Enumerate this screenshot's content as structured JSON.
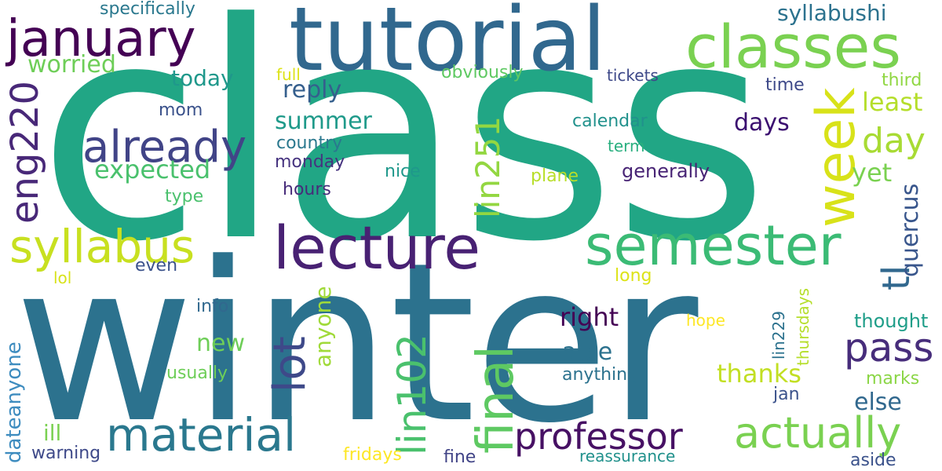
{
  "colors": {
    "background": "#ffffff",
    "palette": [
      "#440154",
      "#482677",
      "#3b528b",
      "#2c728e",
      "#21918c",
      "#28ae80",
      "#5ec962",
      "#addc30",
      "#fde725"
    ]
  },
  "words": [
    {
      "text": "class",
      "color": "#21a685"
    },
    {
      "text": "winter",
      "color": "#2c728e"
    },
    {
      "text": "tutorial",
      "color": "#31688e"
    },
    {
      "text": "classes",
      "color": "#7ad151"
    },
    {
      "text": "january",
      "color": "#440154"
    },
    {
      "text": "lecture",
      "color": "#482173"
    },
    {
      "text": "semester",
      "color": "#3bbb75"
    },
    {
      "text": "syllabus",
      "color": "#c8e020"
    },
    {
      "text": "week",
      "color": "#d8e219"
    },
    {
      "text": "eng220",
      "color": "#482878"
    },
    {
      "text": "already",
      "color": "#414487"
    },
    {
      "text": "material",
      "color": "#2a788e"
    },
    {
      "text": "actually",
      "color": "#7ad151"
    },
    {
      "text": "professor",
      "color": "#471164"
    },
    {
      "text": "final",
      "color": "#5ec962"
    },
    {
      "text": "pass",
      "color": "#472d7b"
    },
    {
      "text": "lot",
      "color": "#3e4989"
    },
    {
      "text": "lin251",
      "color": "#93d741"
    },
    {
      "text": "lin102",
      "color": "#4ac16d"
    },
    {
      "text": "day",
      "color": "#a8db34"
    },
    {
      "text": "tl",
      "color": "#31688e"
    },
    {
      "text": "expected",
      "color": "#4ac16d"
    },
    {
      "text": "summer",
      "color": "#1f9a8a"
    },
    {
      "text": "syllabushi",
      "color": "#2c728e"
    },
    {
      "text": "worried",
      "color": "#6ece58"
    },
    {
      "text": "today",
      "color": "#1f988b"
    },
    {
      "text": "reply",
      "color": "#355f8d"
    },
    {
      "text": "least",
      "color": "#b5de2b"
    },
    {
      "text": "yet",
      "color": "#7ad151"
    },
    {
      "text": "days",
      "color": "#3b0f70"
    },
    {
      "text": "quercus",
      "color": "#39568c"
    },
    {
      "text": "right",
      "color": "#440154"
    },
    {
      "text": "able",
      "color": "#2c728e"
    },
    {
      "text": "new",
      "color": "#6ece58"
    },
    {
      "text": "thanks",
      "color": "#c2df23"
    },
    {
      "text": "else",
      "color": "#31688e"
    },
    {
      "text": "anyone",
      "color": "#a0da39"
    },
    {
      "text": "dateanyone",
      "color": "#3e8cbf"
    },
    {
      "text": "ill",
      "color": "#7ad151"
    },
    {
      "text": "specifically",
      "color": "#2a788e"
    },
    {
      "text": "full",
      "color": "#dde318"
    },
    {
      "text": "obviously",
      "color": "#5ec962"
    },
    {
      "text": "tickets",
      "color": "#3e4989"
    },
    {
      "text": "time",
      "color": "#3e4989"
    },
    {
      "text": "third",
      "color": "#90d743"
    },
    {
      "text": "mom",
      "color": "#3b528b"
    },
    {
      "text": "calendar",
      "color": "#21918c"
    },
    {
      "text": "country",
      "color": "#2a788e"
    },
    {
      "text": "term",
      "color": "#29af7f"
    },
    {
      "text": "monday",
      "color": "#46337f"
    },
    {
      "text": "nice",
      "color": "#1f988b"
    },
    {
      "text": "plane",
      "color": "#b8de29"
    },
    {
      "text": "generally",
      "color": "#482475"
    },
    {
      "text": "hours",
      "color": "#472c7a"
    },
    {
      "text": "type",
      "color": "#4ac16d"
    },
    {
      "text": "even",
      "color": "#3b528b"
    },
    {
      "text": "lol",
      "color": "#d8e219"
    },
    {
      "text": "long",
      "color": "#dde318"
    },
    {
      "text": "info",
      "color": "#31688e"
    },
    {
      "text": "hope",
      "color": "#fde725"
    },
    {
      "text": "thought",
      "color": "#1f9e89"
    },
    {
      "text": "usually",
      "color": "#6ece58"
    },
    {
      "text": "anything",
      "color": "#2c728e"
    },
    {
      "text": "marks",
      "color": "#8bd646"
    },
    {
      "text": "jan",
      "color": "#3b528b"
    },
    {
      "text": "thursdays",
      "color": "#b5de2b"
    },
    {
      "text": "lin229",
      "color": "#2c728e"
    },
    {
      "text": "warning",
      "color": "#3e4989"
    },
    {
      "text": "fridays",
      "color": "#fde725"
    },
    {
      "text": "fine",
      "color": "#414487"
    },
    {
      "text": "reassurance",
      "color": "#21918c"
    },
    {
      "text": "aside",
      "color": "#3b528b"
    }
  ]
}
